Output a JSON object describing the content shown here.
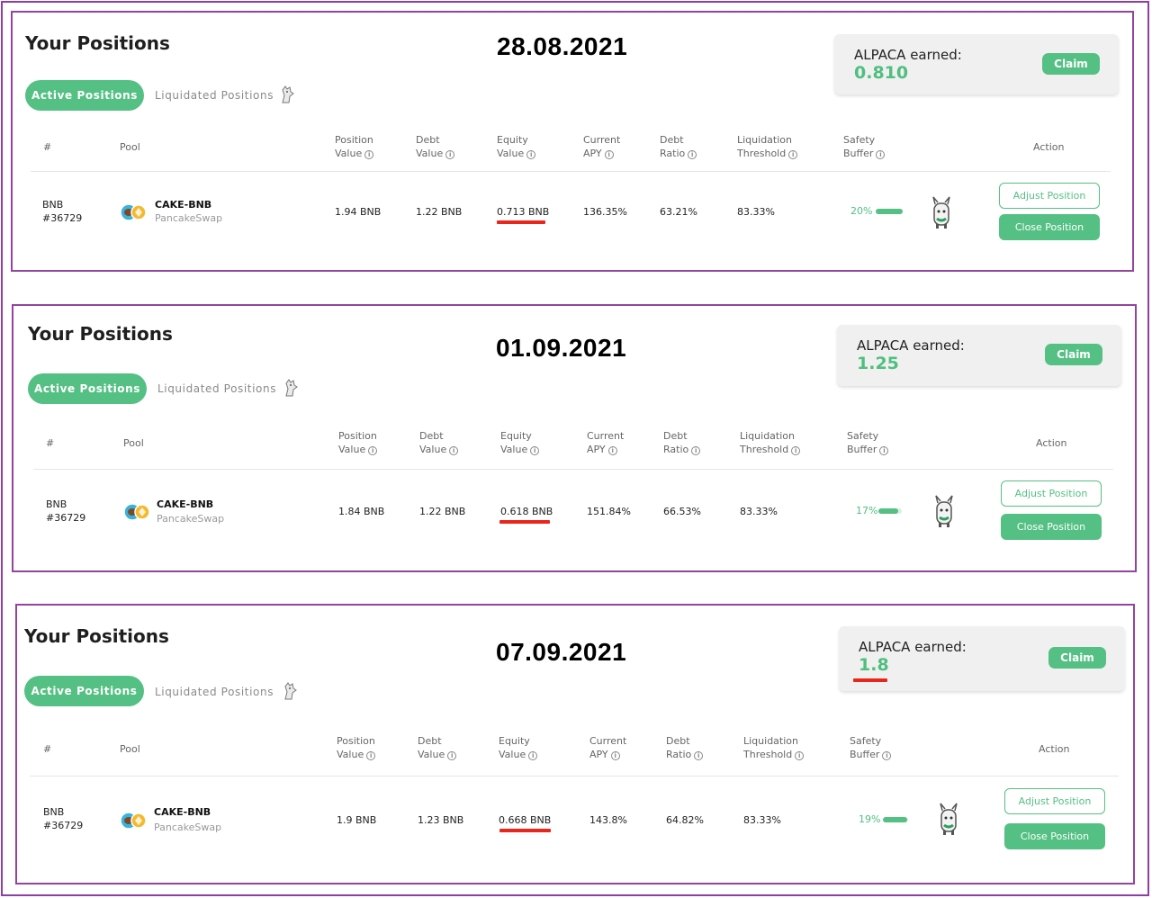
{
  "colors": {
    "accent": "#55c083",
    "frame": "#93449e",
    "highlight": "#e8261b",
    "text": "#222222"
  },
  "icons": {
    "tab": "alpaca-mascot-icon",
    "pool": "cake-bnb-token-pair-icon",
    "row": "alpaca-mascot-icon",
    "info": "info-icon"
  },
  "snapshots": [
    {
      "title": "Your Positions",
      "date": "28.08.2021",
      "earned_label": "ALPACA earned:",
      "earned_value": "0.810",
      "claim": "Claim",
      "tab_active": "Active Positions",
      "tab_inactive": "Liquidated Positions",
      "headers": {
        "num": "#",
        "pool": "Pool",
        "pos1": "Position",
        "pos2": "Value",
        "debt1": "Debt",
        "debt2": "Value",
        "eq1": "Equity",
        "eq2": "Value",
        "apy1": "Current",
        "apy2": "APY",
        "ratio1": "Debt",
        "ratio2": "Ratio",
        "liq1": "Liquidation",
        "liq2": "Threshold",
        "safe1": "Safety",
        "safe2": "Buffer",
        "action": "Action"
      },
      "row": {
        "asset": "BNB",
        "id": "#36729",
        "pool_name": "CAKE-BNB",
        "pool_dex": "PancakeSwap",
        "position_value": "1.94 BNB",
        "debt_value": "1.22 BNB",
        "equity_value": "0.713 BNB",
        "apy": "136.35%",
        "debt_ratio": "63.21%",
        "liq_threshold": "83.33%",
        "safety_buffer": "20%",
        "safety_fraction": 0.2,
        "adjust": "Adjust Position",
        "close": "Close Position"
      }
    },
    {
      "title": "Your Positions",
      "date": "01.09.2021",
      "earned_label": "ALPACA earned:",
      "earned_value": "1.25",
      "claim": "Claim",
      "tab_active": "Active Positions",
      "tab_inactive": "Liquidated Positions",
      "headers": {
        "num": "#",
        "pool": "Pool",
        "pos1": "Position",
        "pos2": "Value",
        "debt1": "Debt",
        "debt2": "Value",
        "eq1": "Equity",
        "eq2": "Value",
        "apy1": "Current",
        "apy2": "APY",
        "ratio1": "Debt",
        "ratio2": "Ratio",
        "liq1": "Liquidation",
        "liq2": "Threshold",
        "safe1": "Safety",
        "safe2": "Buffer",
        "action": "Action"
      },
      "row": {
        "asset": "BNB",
        "id": "#36729",
        "pool_name": "CAKE-BNB",
        "pool_dex": "PancakeSwap",
        "position_value": "1.84 BNB",
        "debt_value": "1.22 BNB",
        "equity_value": "0.618 BNB",
        "apy": "151.84%",
        "debt_ratio": "66.53%",
        "liq_threshold": "83.33%",
        "safety_buffer": "17%",
        "safety_fraction": 0.17,
        "adjust": "Adjust Position",
        "close": "Close Position"
      }
    },
    {
      "title": "Your Positions",
      "date": "07.09.2021",
      "earned_label": "ALPACA earned:",
      "earned_value": "1.8",
      "claim": "Claim",
      "tab_active": "Active Positions",
      "tab_inactive": "Liquidated Positions",
      "headers": {
        "num": "#",
        "pool": "Pool",
        "pos1": "Position",
        "pos2": "Value",
        "debt1": "Debt",
        "debt2": "Value",
        "eq1": "Equity",
        "eq2": "Value",
        "apy1": "Current",
        "apy2": "APY",
        "ratio1": "Debt",
        "ratio2": "Ratio",
        "liq1": "Liquidation",
        "liq2": "Threshold",
        "safe1": "Safety",
        "safe2": "Buffer",
        "action": "Action"
      },
      "row": {
        "asset": "BNB",
        "id": "#36729",
        "pool_name": "CAKE-BNB",
        "pool_dex": "PancakeSwap",
        "position_value": "1.9 BNB",
        "debt_value": "1.23 BNB",
        "equity_value": "0.668 BNB",
        "apy": "143.8%",
        "debt_ratio": "64.82%",
        "liq_threshold": "83.33%",
        "safety_buffer": "19%",
        "safety_fraction": 0.19,
        "adjust": "Adjust Position",
        "close": "Close Position"
      }
    }
  ]
}
